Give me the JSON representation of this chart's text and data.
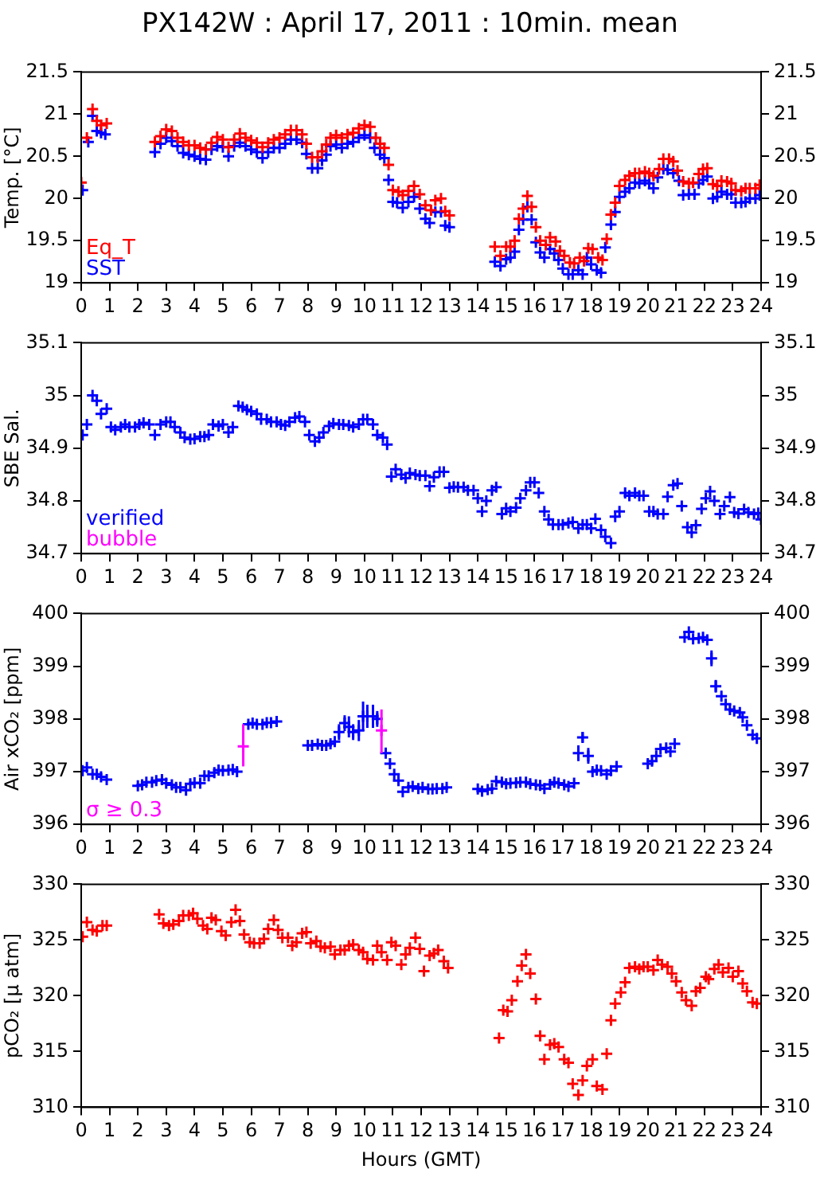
{
  "chart_data": [
    {
      "type": "scatter",
      "title": "PX142W : April 17, 2011 : 10min. mean",
      "ylabel": "Temp. [°C]",
      "xlim": [
        0,
        24
      ],
      "xticks": [
        0,
        1,
        2,
        3,
        4,
        5,
        6,
        7,
        8,
        9,
        10,
        11,
        12,
        13,
        14,
        15,
        16,
        17,
        18,
        19,
        20,
        21,
        22,
        23,
        24
      ],
      "ylim": [
        19,
        21.5
      ],
      "yticks": [
        19,
        19.5,
        20,
        20.5,
        21,
        21.5
      ],
      "y2lim": [
        19,
        21.5
      ],
      "y2ticks": [
        19,
        19.5,
        20,
        20.5,
        21,
        21.5
      ],
      "marker": "cross",
      "legend": "bottom left",
      "series": [
        {
          "name": "Eq_T",
          "color": "#ff0000",
          "x": [
            0.0,
            0.2,
            0.4,
            0.55,
            0.7,
            0.9,
            2.6,
            2.8,
            3.0,
            3.2,
            3.4,
            3.6,
            3.8,
            4.0,
            4.2,
            4.4,
            4.6,
            4.8,
            5.0,
            5.2,
            5.4,
            5.6,
            5.8,
            6.0,
            6.2,
            6.4,
            6.6,
            6.8,
            7.0,
            7.2,
            7.4,
            7.6,
            7.8,
            7.95,
            8.15,
            8.35,
            8.5,
            8.65,
            8.8,
            9.0,
            9.2,
            9.4,
            9.6,
            9.8,
            10.0,
            10.2,
            10.4,
            10.55,
            10.7,
            10.85,
            11.0,
            11.2,
            11.35,
            11.55,
            11.75,
            11.95,
            12.15,
            12.35,
            12.5,
            12.7,
            12.85,
            13.0,
            14.6,
            14.8,
            15.0,
            15.15,
            15.3,
            15.45,
            15.6,
            15.75,
            15.9,
            16.05,
            16.2,
            16.4,
            16.55,
            16.75,
            16.9,
            17.05,
            17.25,
            17.4,
            17.6,
            17.75,
            17.9,
            18.05,
            18.25,
            18.4,
            18.55,
            18.7,
            18.85,
            19.0,
            19.2,
            19.35,
            19.55,
            19.7,
            19.9,
            20.05,
            20.2,
            20.4,
            20.55,
            20.75,
            20.9,
            21.05,
            21.25,
            21.45,
            21.6,
            21.8,
            21.95,
            22.1,
            22.3,
            22.45,
            22.6,
            22.8,
            22.95,
            23.1,
            23.3,
            23.45,
            23.6,
            23.8,
            23.95
          ],
          "values": [
            20.19,
            20.72,
            21.06,
            20.92,
            20.87,
            20.89,
            20.67,
            20.74,
            20.82,
            20.8,
            20.72,
            20.67,
            20.63,
            20.63,
            20.6,
            20.58,
            20.66,
            20.73,
            20.7,
            20.61,
            20.7,
            20.77,
            20.72,
            20.69,
            20.66,
            20.61,
            20.66,
            20.7,
            20.72,
            20.76,
            20.81,
            20.81,
            20.76,
            20.65,
            20.49,
            20.49,
            20.56,
            20.64,
            20.72,
            20.75,
            20.72,
            20.76,
            20.78,
            20.83,
            20.87,
            20.85,
            20.72,
            20.65,
            20.6,
            20.4,
            20.1,
            20.08,
            20.04,
            20.09,
            20.15,
            20.05,
            19.92,
            19.86,
            19.98,
            20.0,
            19.85,
            19.8,
            19.43,
            19.32,
            19.43,
            19.43,
            19.5,
            19.76,
            19.88,
            20.03,
            19.9,
            19.66,
            19.5,
            19.45,
            19.54,
            19.49,
            19.38,
            19.32,
            19.24,
            19.23,
            19.3,
            19.26,
            19.41,
            19.4,
            19.3,
            19.27,
            19.52,
            19.81,
            19.95,
            20.15,
            20.22,
            20.27,
            20.3,
            20.3,
            20.32,
            20.3,
            20.27,
            20.35,
            20.47,
            20.47,
            20.44,
            20.33,
            20.2,
            20.18,
            20.19,
            20.29,
            20.35,
            20.36,
            20.17,
            20.15,
            20.21,
            20.2,
            20.18,
            20.1,
            20.09,
            20.12,
            20.12,
            20.12,
            20.16
          ]
        },
        {
          "name": "SST",
          "color": "#0000ff",
          "x": [
            0.05,
            0.25,
            0.4,
            0.55,
            0.7,
            0.85,
            2.6,
            2.8,
            3.0,
            3.2,
            3.4,
            3.6,
            3.8,
            4.0,
            4.2,
            4.4,
            4.6,
            4.8,
            5.0,
            5.2,
            5.4,
            5.6,
            5.8,
            6.0,
            6.2,
            6.4,
            6.6,
            6.8,
            7.0,
            7.2,
            7.4,
            7.6,
            7.8,
            7.95,
            8.15,
            8.35,
            8.5,
            8.65,
            8.8,
            9.0,
            9.2,
            9.4,
            9.6,
            9.8,
            10.0,
            10.2,
            10.35,
            10.55,
            10.7,
            10.85,
            11.0,
            11.15,
            11.35,
            11.55,
            11.75,
            11.95,
            12.15,
            12.3,
            12.5,
            12.7,
            12.85,
            13.0,
            14.6,
            14.8,
            15.0,
            15.15,
            15.3,
            15.45,
            15.6,
            15.75,
            15.9,
            16.05,
            16.2,
            16.35,
            16.55,
            16.7,
            16.85,
            17.0,
            17.2,
            17.35,
            17.55,
            17.7,
            17.85,
            18.0,
            18.2,
            18.35,
            18.5,
            18.7,
            18.85,
            19.0,
            19.2,
            19.35,
            19.55,
            19.7,
            19.9,
            20.05,
            20.2,
            20.35,
            20.55,
            20.7,
            20.9,
            21.1,
            21.25,
            21.45,
            21.65,
            21.8,
            21.95,
            22.1,
            22.3,
            22.45,
            22.6,
            22.8,
            22.95,
            23.1,
            23.3,
            23.45,
            23.6,
            23.8,
            23.95
          ],
          "values": [
            20.1,
            20.67,
            20.98,
            20.8,
            20.78,
            20.76,
            20.55,
            20.65,
            20.72,
            20.68,
            20.62,
            20.54,
            20.52,
            20.5,
            20.47,
            20.46,
            20.58,
            20.62,
            20.61,
            20.5,
            20.62,
            20.66,
            20.62,
            20.58,
            20.55,
            20.48,
            20.55,
            20.6,
            20.6,
            20.65,
            20.7,
            20.7,
            20.66,
            20.53,
            20.36,
            20.36,
            20.45,
            20.52,
            20.62,
            20.64,
            20.6,
            20.65,
            20.67,
            20.72,
            20.75,
            20.72,
            20.6,
            20.52,
            20.48,
            20.22,
            19.96,
            19.95,
            19.89,
            19.96,
            20.02,
            19.88,
            19.76,
            19.71,
            19.84,
            19.84,
            19.68,
            19.66,
            19.25,
            19.2,
            19.28,
            19.3,
            19.37,
            19.63,
            19.75,
            19.9,
            19.75,
            19.48,
            19.36,
            19.3,
            19.4,
            19.35,
            19.27,
            19.17,
            19.1,
            19.1,
            19.15,
            19.1,
            19.3,
            19.22,
            19.15,
            19.12,
            19.42,
            19.69,
            19.84,
            20.02,
            20.08,
            20.12,
            20.19,
            20.18,
            20.21,
            20.18,
            20.12,
            20.25,
            20.35,
            20.34,
            20.3,
            20.21,
            20.04,
            20.05,
            20.05,
            20.18,
            20.22,
            20.26,
            20.0,
            20.02,
            20.08,
            20.05,
            20.05,
            19.95,
            19.95,
            19.96,
            20.0,
            20.0,
            20.04
          ]
        }
      ]
    },
    {
      "type": "scatter",
      "ylabel": "SBE Sal.",
      "xlim": [
        0,
        24
      ],
      "xticks": [
        0,
        1,
        2,
        3,
        4,
        5,
        6,
        7,
        8,
        9,
        10,
        11,
        12,
        13,
        14,
        15,
        16,
        17,
        18,
        19,
        20,
        21,
        22,
        23,
        24
      ],
      "ylim": [
        34.7,
        35.1
      ],
      "yticks": [
        34.7,
        34.8,
        34.9,
        35,
        35.1
      ],
      "y2lim": [
        34.7,
        35.1
      ],
      "y2ticks": [
        34.7,
        34.8,
        34.9,
        35,
        35.1
      ],
      "marker": "cross",
      "legend": "bottom left",
      "series": [
        {
          "name": "verified",
          "color": "#0000ff",
          "x": [
            0.05,
            0.2,
            0.4,
            0.55,
            0.7,
            0.9,
            1.05,
            1.2,
            1.4,
            1.55,
            1.7,
            1.9,
            2.05,
            2.2,
            2.4,
            2.6,
            2.8,
            3.0,
            3.15,
            3.3,
            3.5,
            3.65,
            3.85,
            4.0,
            4.2,
            4.35,
            4.5,
            4.65,
            4.85,
            5.0,
            5.2,
            5.35,
            5.55,
            5.7,
            5.85,
            6.0,
            6.2,
            6.35,
            6.55,
            6.7,
            6.9,
            7.05,
            7.2,
            7.35,
            7.55,
            7.7,
            7.9,
            8.05,
            8.25,
            8.4,
            8.55,
            8.75,
            8.9,
            9.1,
            9.25,
            9.45,
            9.6,
            9.8,
            9.95,
            10.1,
            10.3,
            10.45,
            10.65,
            10.8,
            10.95,
            11.1,
            11.3,
            11.45,
            11.6,
            11.8,
            11.95,
            12.15,
            12.3,
            12.45,
            12.65,
            12.8,
            13.0,
            13.15,
            13.3,
            13.5,
            13.65,
            13.85,
            14.0,
            14.15,
            14.3,
            14.5,
            14.65,
            14.85,
            15.0,
            15.15,
            15.35,
            15.5,
            15.7,
            15.85,
            16.0,
            16.15,
            16.35,
            16.5,
            16.65,
            16.85,
            17.0,
            17.2,
            17.35,
            17.55,
            17.7,
            17.85,
            18.0,
            18.15,
            18.35,
            18.5,
            18.7,
            18.85,
            19.0,
            19.2,
            19.35,
            19.55,
            19.7,
            19.85,
            20.05,
            20.2,
            20.35,
            20.55,
            20.7,
            20.9,
            21.05,
            21.2,
            21.4,
            21.55,
            21.7,
            21.9,
            22.05,
            22.2,
            22.35,
            22.55,
            22.7,
            22.9,
            23.05,
            23.2,
            23.4,
            23.55,
            23.75,
            23.9,
            24.0
          ],
          "values": [
            34.925,
            34.945,
            35.0,
            34.99,
            34.965,
            34.975,
            34.94,
            34.935,
            34.94,
            34.945,
            34.94,
            34.94,
            34.945,
            34.948,
            34.945,
            34.925,
            34.945,
            34.95,
            34.95,
            34.94,
            34.93,
            34.92,
            34.917,
            34.918,
            34.922,
            34.922,
            34.925,
            34.945,
            34.942,
            34.945,
            34.93,
            34.94,
            34.98,
            34.978,
            34.973,
            34.97,
            34.965,
            34.955,
            34.955,
            34.95,
            34.95,
            34.945,
            34.943,
            34.95,
            34.958,
            34.96,
            34.95,
            34.925,
            34.913,
            34.92,
            34.93,
            34.942,
            34.947,
            34.945,
            34.945,
            34.943,
            34.94,
            34.945,
            34.955,
            34.955,
            34.945,
            34.925,
            34.92,
            34.907,
            34.846,
            34.86,
            34.85,
            34.843,
            34.853,
            34.85,
            34.848,
            34.848,
            34.828,
            34.845,
            34.855,
            34.855,
            34.825,
            34.827,
            34.826,
            34.826,
            34.82,
            34.82,
            34.805,
            34.78,
            34.8,
            34.82,
            34.826,
            34.775,
            34.786,
            34.78,
            34.787,
            34.805,
            34.82,
            34.835,
            34.835,
            34.815,
            34.78,
            34.765,
            34.755,
            34.755,
            34.755,
            34.758,
            34.76,
            34.748,
            34.755,
            34.755,
            34.748,
            34.766,
            34.745,
            34.732,
            34.72,
            34.77,
            34.78,
            34.815,
            34.81,
            34.815,
            34.81,
            34.81,
            34.78,
            34.78,
            34.775,
            34.775,
            34.808,
            34.83,
            34.833,
            34.79,
            34.75,
            34.74,
            34.754,
            34.785,
            34.805,
            34.818,
            34.8,
            34.775,
            34.79,
            34.807,
            34.778,
            34.776,
            34.784,
            34.778,
            34.775,
            34.777,
            34.765
          ]
        },
        {
          "name": "bubble",
          "color": "#ff00ff"
        }
      ]
    },
    {
      "type": "scatter",
      "ylabel": "Air xCO₂ [ppm]",
      "xlim": [
        0,
        24
      ],
      "xticks": [
        0,
        1,
        2,
        3,
        4,
        5,
        6,
        7,
        8,
        9,
        10,
        11,
        12,
        13,
        14,
        15,
        16,
        17,
        18,
        19,
        20,
        21,
        22,
        23,
        24
      ],
      "ylim": [
        396,
        400
      ],
      "yticks": [
        396,
        397,
        398,
        399,
        400
      ],
      "y2lim": [
        396,
        400
      ],
      "y2ticks": [
        396,
        397,
        398,
        399,
        400
      ],
      "marker": "cross",
      "legend": "bottom left",
      "series": [
        {
          "color": "#0000ff",
          "x": [
            0.05,
            0.2,
            0.4,
            0.55,
            0.7,
            0.9,
            2.0,
            2.15,
            2.3,
            2.5,
            2.65,
            2.85,
            3.0,
            3.2,
            3.35,
            3.5,
            3.7,
            3.85,
            4.0,
            4.2,
            4.35,
            4.5,
            4.7,
            4.85,
            5.0,
            5.2,
            5.35,
            5.5,
            5.9,
            6.05,
            6.2,
            6.4,
            6.55,
            6.7,
            6.9,
            8.0,
            8.15,
            8.35,
            8.5,
            8.65,
            8.8,
            8.95,
            9.1,
            9.3,
            9.45,
            9.6,
            9.8,
            9.95,
            10.1,
            10.3,
            10.45,
            10.75,
            10.9,
            11.05,
            11.2,
            11.35,
            11.55,
            11.7,
            11.9,
            12.05,
            12.25,
            12.4,
            12.55,
            12.75,
            12.9,
            14.0,
            14.15,
            14.35,
            14.5,
            14.65,
            14.85,
            15.0,
            15.15,
            15.35,
            15.5,
            15.7,
            15.85,
            16.05,
            16.2,
            16.35,
            16.55,
            16.7,
            16.85,
            17.05,
            17.2,
            17.4,
            17.55,
            17.7,
            17.9,
            18.05,
            18.2,
            18.35,
            18.55,
            18.7,
            18.9,
            20.0,
            20.15,
            20.3,
            20.45,
            20.65,
            20.8,
            20.95,
            21.3,
            21.45,
            21.6,
            21.8,
            21.95,
            22.1,
            22.25,
            22.4,
            22.6,
            22.75,
            22.9,
            23.05,
            23.25,
            23.35,
            23.5,
            23.7,
            23.85
          ],
          "values": [
            397.02,
            397.08,
            396.95,
            396.95,
            396.9,
            396.85,
            396.73,
            396.75,
            396.8,
            396.8,
            396.83,
            396.85,
            396.78,
            396.75,
            396.7,
            396.7,
            396.65,
            396.77,
            396.79,
            396.78,
            396.92,
            396.92,
            396.98,
            397.03,
            397.02,
            397.03,
            397.04,
            397.0,
            397.9,
            397.92,
            397.9,
            397.9,
            397.93,
            397.93,
            397.95,
            397.5,
            397.5,
            397.52,
            397.5,
            397.5,
            397.53,
            397.57,
            397.75,
            397.92,
            397.85,
            397.75,
            397.78,
            398.05,
            398.05,
            398.05,
            398.0,
            397.35,
            397.15,
            396.95,
            396.83,
            396.62,
            396.7,
            396.72,
            396.68,
            396.7,
            396.67,
            396.67,
            396.68,
            396.68,
            396.7,
            396.67,
            396.63,
            396.66,
            396.68,
            396.82,
            396.8,
            396.77,
            396.78,
            396.79,
            396.8,
            396.8,
            396.77,
            396.75,
            396.74,
            396.68,
            396.76,
            396.8,
            396.78,
            396.75,
            396.72,
            396.78,
            397.35,
            397.65,
            397.3,
            397.0,
            397.03,
            397.02,
            396.95,
            397.02,
            397.1,
            397.15,
            397.2,
            397.3,
            397.43,
            397.45,
            397.38,
            397.53,
            399.55,
            399.65,
            399.52,
            399.53,
            399.55,
            399.5,
            399.15,
            398.62,
            398.43,
            398.28,
            398.18,
            398.15,
            398.12,
            398.03,
            397.88,
            397.7,
            397.63
          ],
          "errors": [
            null,
            null,
            null,
            null,
            null,
            null,
            null,
            null,
            null,
            null,
            null,
            null,
            null,
            null,
            null,
            null,
            null,
            null,
            null,
            null,
            null,
            null,
            null,
            null,
            null,
            null,
            null,
            null,
            null,
            null,
            null,
            null,
            null,
            null,
            null,
            null,
            null,
            null,
            null,
            null,
            null,
            null,
            0.15,
            0.15,
            0.2,
            0.15,
            0.2,
            0.28,
            0.22,
            0.22,
            0.15,
            null,
            null,
            null,
            null,
            null,
            null,
            null,
            null,
            null,
            null,
            null,
            null,
            null,
            null,
            null,
            null,
            null,
            null,
            null,
            null,
            null,
            null,
            null,
            null,
            null,
            null,
            null,
            null,
            null,
            null,
            null,
            null,
            null,
            null,
            null,
            0.15,
            0.1,
            0.15,
            null,
            null,
            null,
            null,
            null,
            null,
            null,
            null,
            null,
            null,
            null,
            null,
            null,
            null,
            null,
            null,
            null,
            null,
            null,
            0.15,
            0.12,
            null,
            null,
            null,
            null,
            null,
            null,
            null,
            null,
            null
          ]
        },
        {
          "name": "σ ≥ 0.3",
          "color": "#ff00ff",
          "x": [
            5.72,
            10.6
          ],
          "values": [
            397.48,
            397.78
          ],
          "errors": [
            [
              397.1,
              397.9
            ],
            [
              397.35,
              398.18
            ]
          ]
        }
      ]
    },
    {
      "type": "scatter",
      "xlabel": "Hours (GMT)",
      "ylabel": "pCO₂ [μ atm]",
      "xlim": [
        0,
        24
      ],
      "xticks": [
        0,
        1,
        2,
        3,
        4,
        5,
        6,
        7,
        8,
        9,
        10,
        11,
        12,
        13,
        14,
        15,
        16,
        17,
        18,
        19,
        20,
        21,
        22,
        23,
        24
      ],
      "ylim": [
        310,
        330
      ],
      "yticks": [
        310,
        315,
        320,
        325,
        330
      ],
      "y2lim": [
        310,
        330
      ],
      "y2ticks": [
        310,
        315,
        320,
        325,
        330
      ],
      "marker": "cross",
      "series": [
        {
          "color": "#ff0000",
          "x": [
            0.05,
            0.2,
            0.4,
            0.55,
            0.75,
            0.9,
            2.75,
            2.9,
            3.1,
            3.25,
            3.45,
            3.6,
            3.8,
            3.95,
            4.1,
            4.3,
            4.45,
            4.6,
            4.75,
            4.95,
            5.1,
            5.3,
            5.45,
            5.6,
            5.75,
            5.95,
            6.1,
            6.3,
            6.45,
            6.6,
            6.8,
            6.95,
            7.1,
            7.3,
            7.45,
            7.6,
            7.8,
            7.95,
            8.1,
            8.3,
            8.45,
            8.6,
            8.8,
            8.95,
            9.15,
            9.3,
            9.45,
            9.6,
            9.8,
            9.95,
            10.1,
            10.3,
            10.45,
            10.6,
            10.8,
            10.95,
            11.1,
            11.3,
            11.45,
            11.6,
            11.8,
            11.95,
            12.1,
            12.3,
            12.45,
            12.6,
            12.8,
            12.95,
            14.75,
            14.9,
            15.05,
            15.2,
            15.4,
            15.55,
            15.7,
            15.85,
            16.05,
            16.2,
            16.35,
            16.55,
            16.7,
            16.85,
            17.05,
            17.2,
            17.35,
            17.55,
            17.7,
            17.85,
            18.05,
            18.2,
            18.4,
            18.55,
            18.7,
            18.85,
            19.05,
            19.2,
            19.35,
            19.55,
            19.7,
            19.85,
            20.0,
            20.2,
            20.35,
            20.5,
            20.7,
            20.85,
            21.0,
            21.2,
            21.35,
            21.55,
            21.7,
            21.85,
            22.05,
            22.15,
            22.35,
            22.5,
            22.65,
            22.85,
            23.0,
            23.2,
            23.35,
            23.5,
            23.7,
            23.85
          ],
          "values": [
            325.3,
            326.6,
            325.9,
            325.8,
            326.3,
            326.3,
            327.3,
            326.5,
            326.3,
            326.4,
            326.7,
            327.2,
            327.2,
            327.4,
            326.9,
            326.3,
            326.0,
            327.0,
            326.8,
            325.8,
            325.4,
            326.6,
            327.7,
            326.7,
            325.5,
            324.8,
            324.7,
            324.7,
            325.1,
            326.0,
            326.8,
            325.9,
            325.2,
            325.2,
            324.5,
            324.8,
            325.6,
            325.7,
            324.7,
            324.9,
            324.4,
            324.3,
            324.4,
            323.7,
            324.1,
            324.1,
            324.5,
            324.6,
            324.1,
            323.9,
            323.3,
            323.2,
            324.5,
            323.9,
            323.2,
            324.8,
            324.5,
            322.8,
            323.7,
            324.3,
            325.2,
            324.2,
            322.2,
            323.6,
            323.8,
            324.1,
            323.1,
            322.5,
            316.2,
            318.7,
            318.6,
            319.6,
            321.3,
            322.7,
            323.7,
            322.0,
            319.7,
            316.4,
            314.3,
            315.6,
            315.7,
            315.4,
            314.3,
            314.0,
            312.1,
            311.1,
            312.4,
            313.7,
            314.3,
            311.9,
            311.6,
            314.8,
            317.8,
            319.3,
            320.3,
            321.2,
            322.5,
            322.6,
            322.4,
            322.6,
            322.6,
            322.3,
            323.2,
            322.8,
            322.6,
            322.0,
            321.3,
            320.3,
            319.6,
            319.1,
            320.4,
            320.7,
            321.7,
            321.5,
            322.4,
            322.8,
            322.1,
            322.5,
            321.7,
            322.2,
            321.1,
            320.4,
            319.4,
            319.3
          ]
        }
      ]
    }
  ]
}
